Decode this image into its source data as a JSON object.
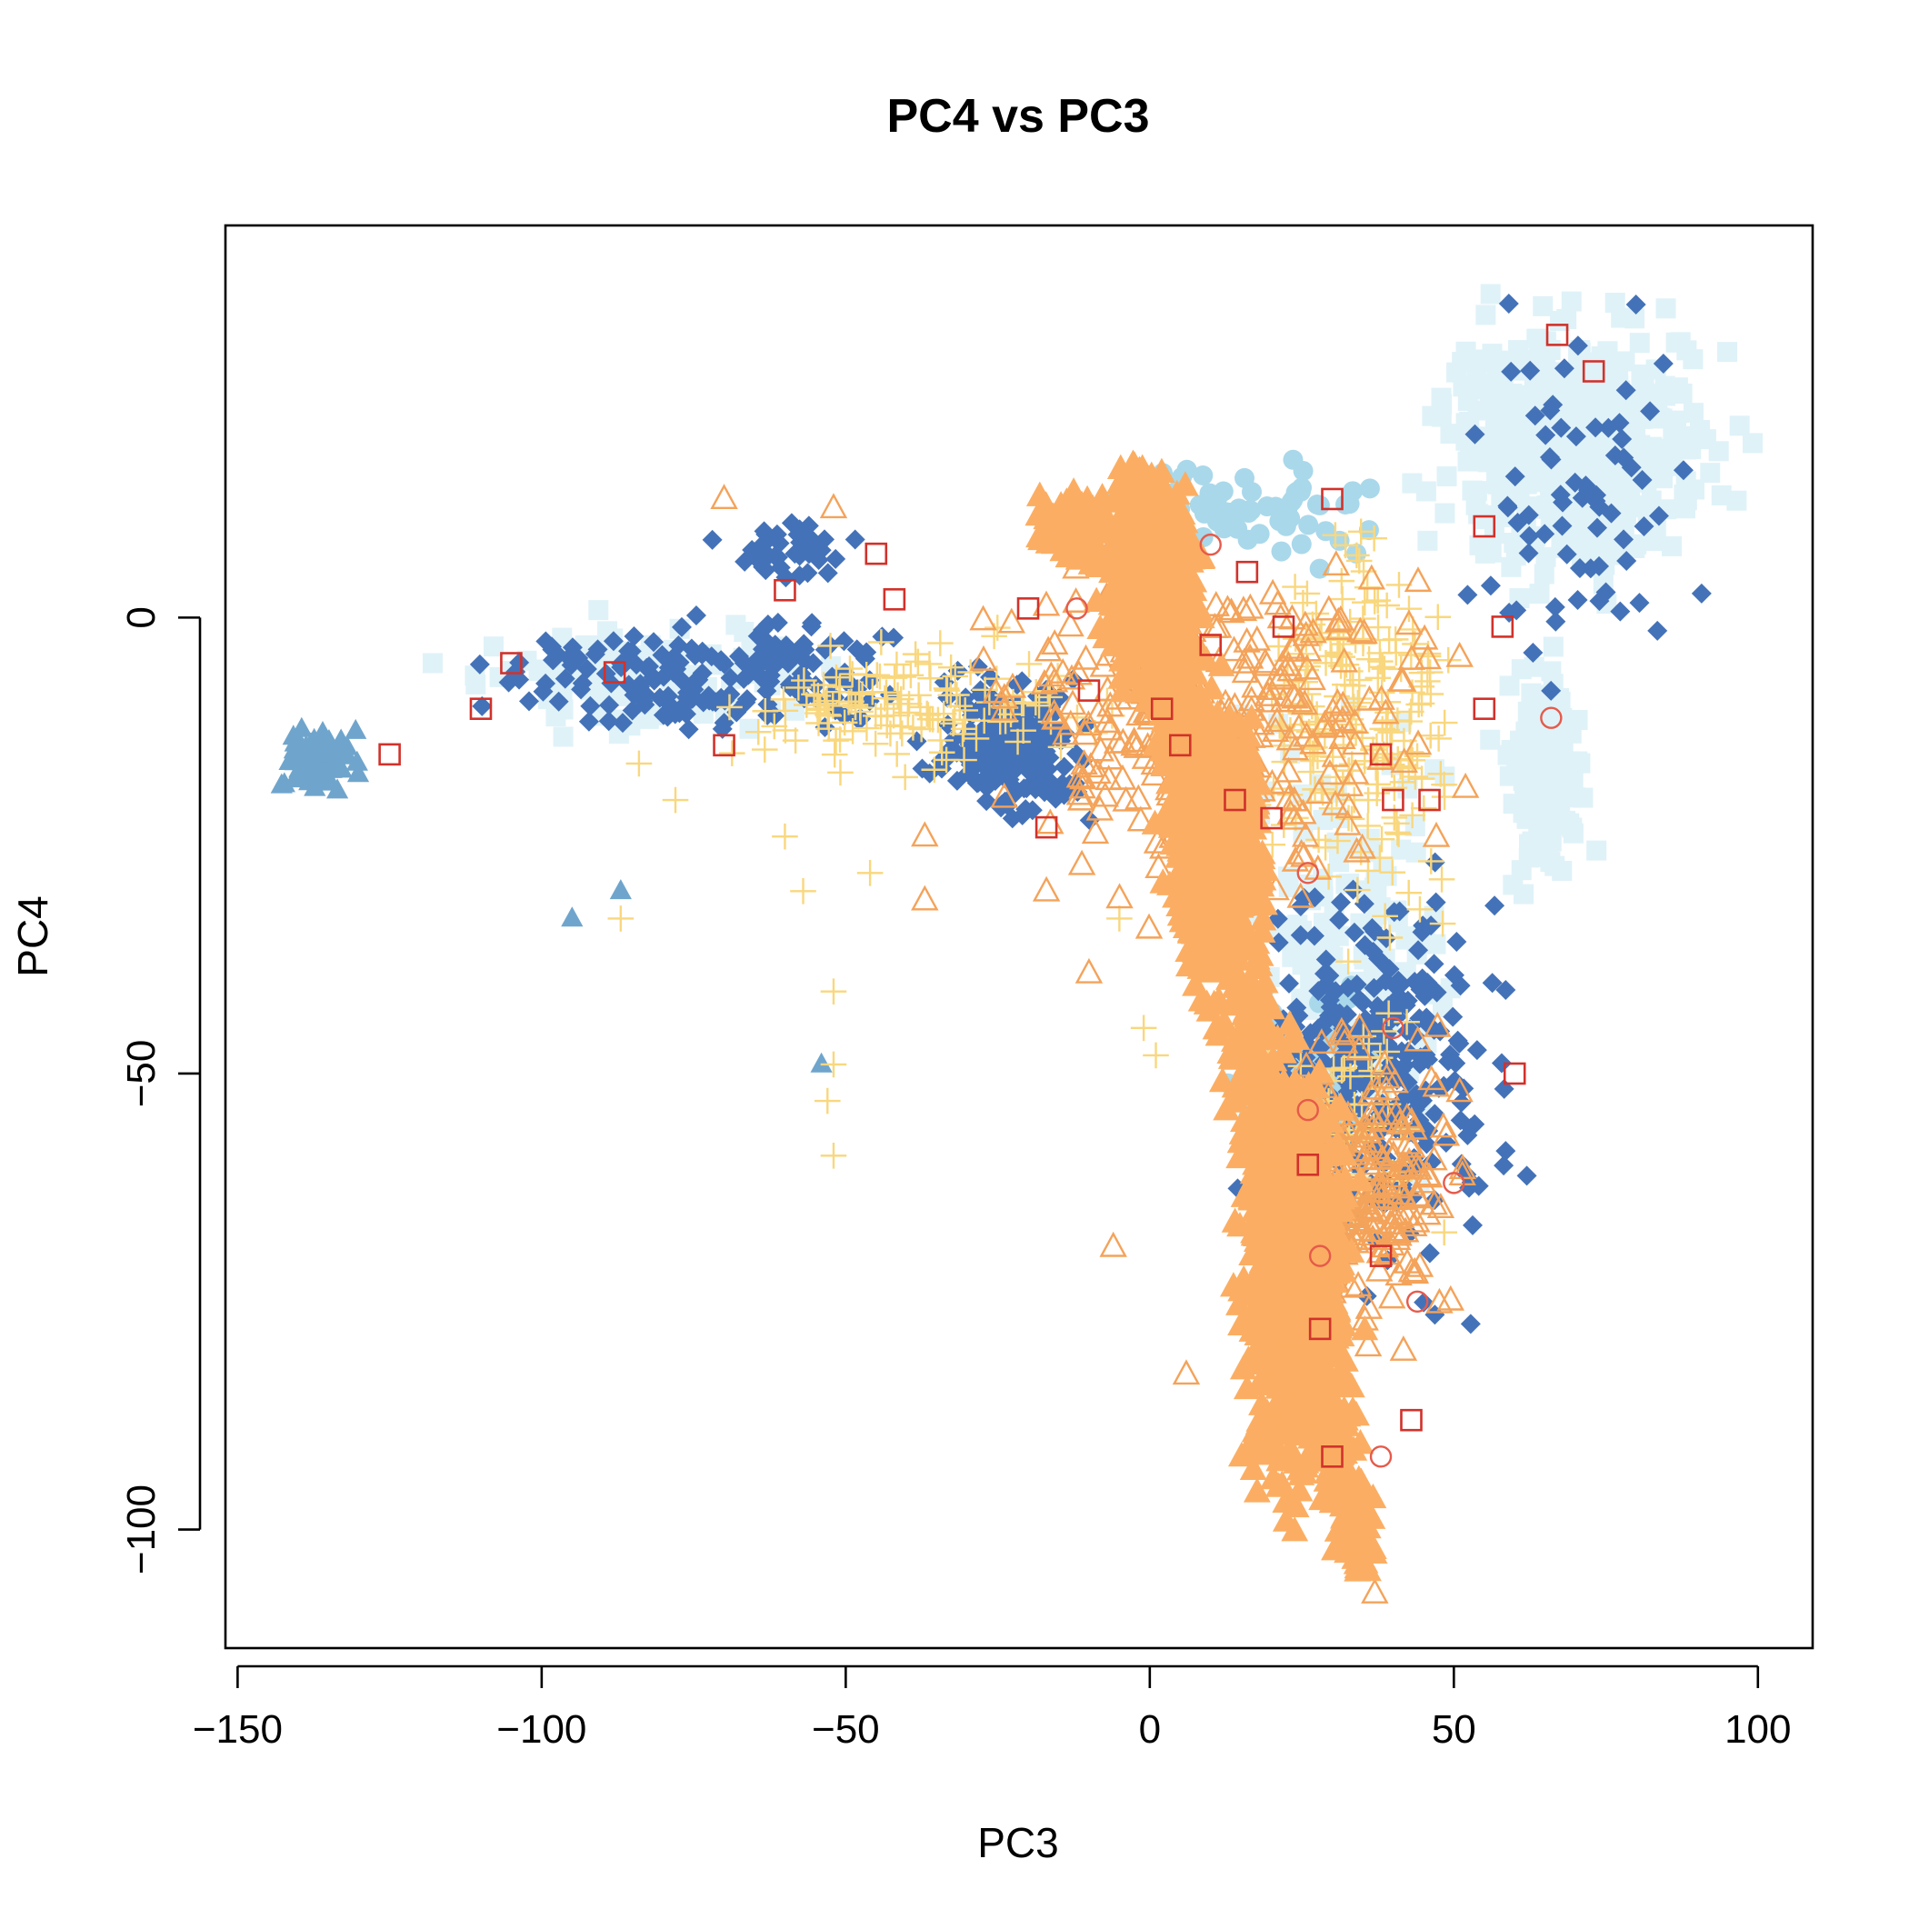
{
  "chart_data": {
    "type": "scatter",
    "title": "PC4 vs PC3",
    "xlabel": "PC3",
    "ylabel": "PC4",
    "xlim": [
      -152,
      109
    ],
    "ylim": [
      -113,
      43
    ],
    "xticks": [
      -150,
      -100,
      -50,
      0,
      50,
      100
    ],
    "yticks": [
      -100,
      -50,
      0
    ],
    "grid": false,
    "legend": "none",
    "series": [
      {
        "marker": "square-filled",
        "color": "#dff2f8",
        "clusters": [
          {
            "x": [
              40,
              100
            ],
            "y": [
              0,
              38
            ],
            "n": 520
          },
          {
            "x": [
              55,
              75
            ],
            "y": [
              -35,
              0
            ],
            "n": 140
          },
          {
            "x": [
              5,
              60
            ],
            "y": [
              -70,
              -5
            ],
            "n": 160
          },
          {
            "x": [
              -125,
              -40
            ],
            "y": [
              -15,
              2
            ],
            "n": 110
          }
        ]
      },
      {
        "marker": "circle-filled",
        "color": "#a9d8ea",
        "clusters": [
          {
            "x": [
              -20,
              45
            ],
            "y": [
              5,
              18
            ],
            "n": 70
          },
          {
            "x": [
              5,
              45
            ],
            "y": [
              -70,
              -30
            ],
            "n": 40
          }
        ]
      },
      {
        "marker": "diamond-filled",
        "color": "#4472b8",
        "clusters": [
          {
            "x": [
              -125,
              -25
            ],
            "y": [
              -15,
              2
            ],
            "n": 190
          },
          {
            "x": [
              -40,
              -5
            ],
            "y": [
              -25,
              -3
            ],
            "n": 200
          },
          {
            "x": [
              10,
              65
            ],
            "y": [
              -80,
              -20
            ],
            "n": 320
          },
          {
            "x": [
              -75,
              -45
            ],
            "y": [
              2,
              12
            ],
            "n": 40
          },
          {
            "x": [
              45,
              93
            ],
            "y": [
              -15,
              40
            ],
            "n": 70
          }
        ]
      },
      {
        "marker": "triangle-filled",
        "color": "#6fa5cc",
        "clusters": [
          {
            "x": [
              -145,
              -128
            ],
            "y": [
              -20,
              -11
            ],
            "n": 90
          }
        ],
        "points": [
          [
            -95,
            -33
          ],
          [
            -87,
            -30
          ],
          [
            -54,
            -49
          ]
        ]
      },
      {
        "marker": "plus",
        "color": "#f9d77e",
        "clusters": [
          {
            "x": [
              -80,
              0
            ],
            "y": [
              -20,
              0
            ],
            "n": 140
          },
          {
            "x": [
              10,
              60
            ],
            "y": [
              -40,
              18
            ],
            "n": 200
          },
          {
            "x": [
              10,
              50
            ],
            "y": [
              -80,
              -35
            ],
            "n": 80
          }
        ],
        "points": [
          [
            -52,
            -41
          ],
          [
            -53,
            -53
          ],
          [
            -52,
            -59
          ],
          [
            -57,
            -30
          ],
          [
            -60,
            -24
          ],
          [
            -78,
            -20
          ],
          [
            -84,
            -16
          ],
          [
            -87,
            -33
          ],
          [
            -52,
            -49
          ],
          [
            -46,
            -28
          ],
          [
            -1,
            -45
          ],
          [
            1,
            -48
          ],
          [
            -5,
            -33
          ]
        ]
      },
      {
        "marker": "triangle-open",
        "color": "#f4a35a",
        "clusters": [
          {
            "x": [
              -40,
              60
            ],
            "y": [
              -40,
              16
            ],
            "n": 300
          },
          {
            "x": [
              15,
              55
            ],
            "y": [
              -85,
              -40
            ],
            "n": 220
          }
        ],
        "points": [
          [
            -6,
            -69
          ],
          [
            6,
            -83
          ],
          [
            37,
            -107
          ],
          [
            -10,
            -39
          ],
          [
            -37,
            -31
          ],
          [
            -37,
            -24
          ],
          [
            -52,
            12
          ],
          [
            -70,
            13
          ]
        ]
      },
      {
        "marker": "dense-cloud",
        "color": "#fbae63",
        "note": "dense filled band from about (-3, 17) down to (35, -105)",
        "clusters": [
          {
            "x": [
              -10,
              10
            ],
            "y": [
              -10,
              17
            ],
            "n": 650
          },
          {
            "x": [
              0,
              22
            ],
            "y": [
              -45,
              -5
            ],
            "n": 700
          },
          {
            "x": [
              12,
              36
            ],
            "y": [
              -105,
              -40
            ],
            "n": 750
          },
          {
            "x": [
              -20,
              -5
            ],
            "y": [
              4,
              16
            ],
            "n": 120
          }
        ]
      },
      {
        "marker": "square-open",
        "color": "#d1322b",
        "points": [
          [
            -125,
            -15
          ],
          [
            -105,
            -5
          ],
          [
            -110,
            -10
          ],
          [
            -88,
            -6
          ],
          [
            -45,
            7
          ],
          [
            -70,
            -14
          ],
          [
            -60,
            3
          ],
          [
            -42,
            2
          ],
          [
            -20,
            1
          ],
          [
            -10,
            -8
          ],
          [
            10,
            -3
          ],
          [
            16,
            5
          ],
          [
            22,
            -1
          ],
          [
            30,
            13
          ],
          [
            38,
            -15
          ],
          [
            40,
            -20
          ],
          [
            46,
            -20
          ],
          [
            55,
            -10
          ],
          [
            58,
            -1
          ],
          [
            60,
            -50
          ],
          [
            67,
            31
          ],
          [
            73,
            27
          ],
          [
            55,
            10
          ],
          [
            28,
            -78
          ],
          [
            30,
            -92
          ],
          [
            43,
            -88
          ],
          [
            20,
            -22
          ],
          [
            -17,
            -23
          ],
          [
            2,
            -10
          ],
          [
            14,
            -20
          ],
          [
            5,
            -14
          ],
          [
            26,
            -60
          ],
          [
            38,
            -70
          ]
        ]
      },
      {
        "marker": "circle-open",
        "color": "#e65a4a",
        "points": [
          [
            66,
            -11
          ],
          [
            26,
            -54
          ],
          [
            26,
            -28
          ],
          [
            38,
            -92
          ],
          [
            44,
            -75
          ],
          [
            50,
            -62
          ],
          [
            40,
            -45
          ],
          [
            28,
            -70
          ],
          [
            -12,
            1
          ],
          [
            10,
            8
          ]
        ]
      }
    ]
  }
}
